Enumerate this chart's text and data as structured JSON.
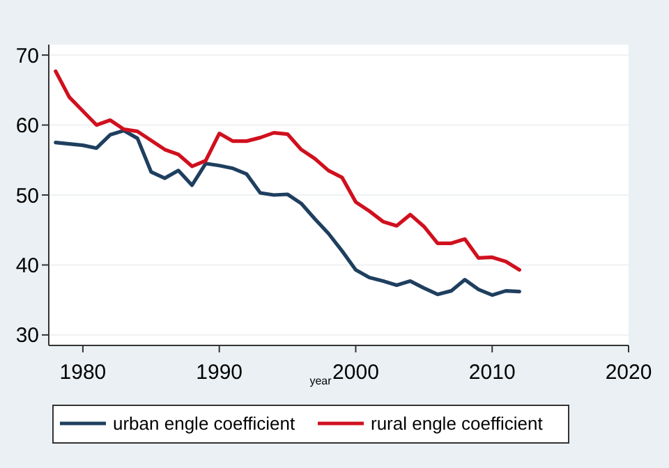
{
  "chart_data": {
    "type": "line",
    "xlabel": "year",
    "x": [
      1978,
      1979,
      1980,
      1981,
      1982,
      1983,
      1984,
      1985,
      1986,
      1987,
      1988,
      1989,
      1990,
      1991,
      1992,
      1993,
      1994,
      1995,
      1996,
      1997,
      1998,
      1999,
      2000,
      2001,
      2002,
      2003,
      2004,
      2005,
      2006,
      2007,
      2008,
      2009,
      2010,
      2011,
      2012
    ],
    "series": [
      {
        "name": "urban engle coefficient",
        "color": "#1f3f5f",
        "values": [
          57.5,
          57.3,
          57.1,
          56.7,
          58.6,
          59.2,
          58.1,
          53.3,
          52.4,
          53.5,
          51.4,
          54.5,
          54.2,
          53.8,
          53.0,
          50.3,
          50.0,
          50.1,
          48.8,
          46.6,
          44.5,
          42.0,
          39.3,
          38.2,
          37.7,
          37.1,
          37.7,
          36.7,
          35.8,
          36.3,
          37.9,
          36.5,
          35.7,
          36.3,
          36.2
        ]
      },
      {
        "name": "rural engle coefficient",
        "color": "#d0101e",
        "values": [
          67.7,
          64.0,
          62.0,
          60.0,
          60.7,
          59.4,
          59.1,
          57.8,
          56.5,
          55.8,
          54.1,
          54.9,
          58.8,
          57.7,
          57.7,
          58.2,
          58.9,
          58.7,
          56.5,
          55.2,
          53.5,
          52.5,
          49.0,
          47.7,
          46.2,
          45.6,
          47.2,
          45.5,
          43.1,
          43.1,
          43.7,
          41.0,
          41.1,
          40.5,
          39.3
        ]
      }
    ],
    "xlim": [
      1977.5,
      2020
    ],
    "xticks": [
      1980,
      1990,
      2000,
      2010,
      2020
    ],
    "ylim": [
      28.5,
      71.5
    ],
    "yticks": [
      30,
      40,
      50,
      60,
      70
    ],
    "grid": "y",
    "legend": "bottom",
    "line_style": "solid",
    "marker": "none"
  }
}
